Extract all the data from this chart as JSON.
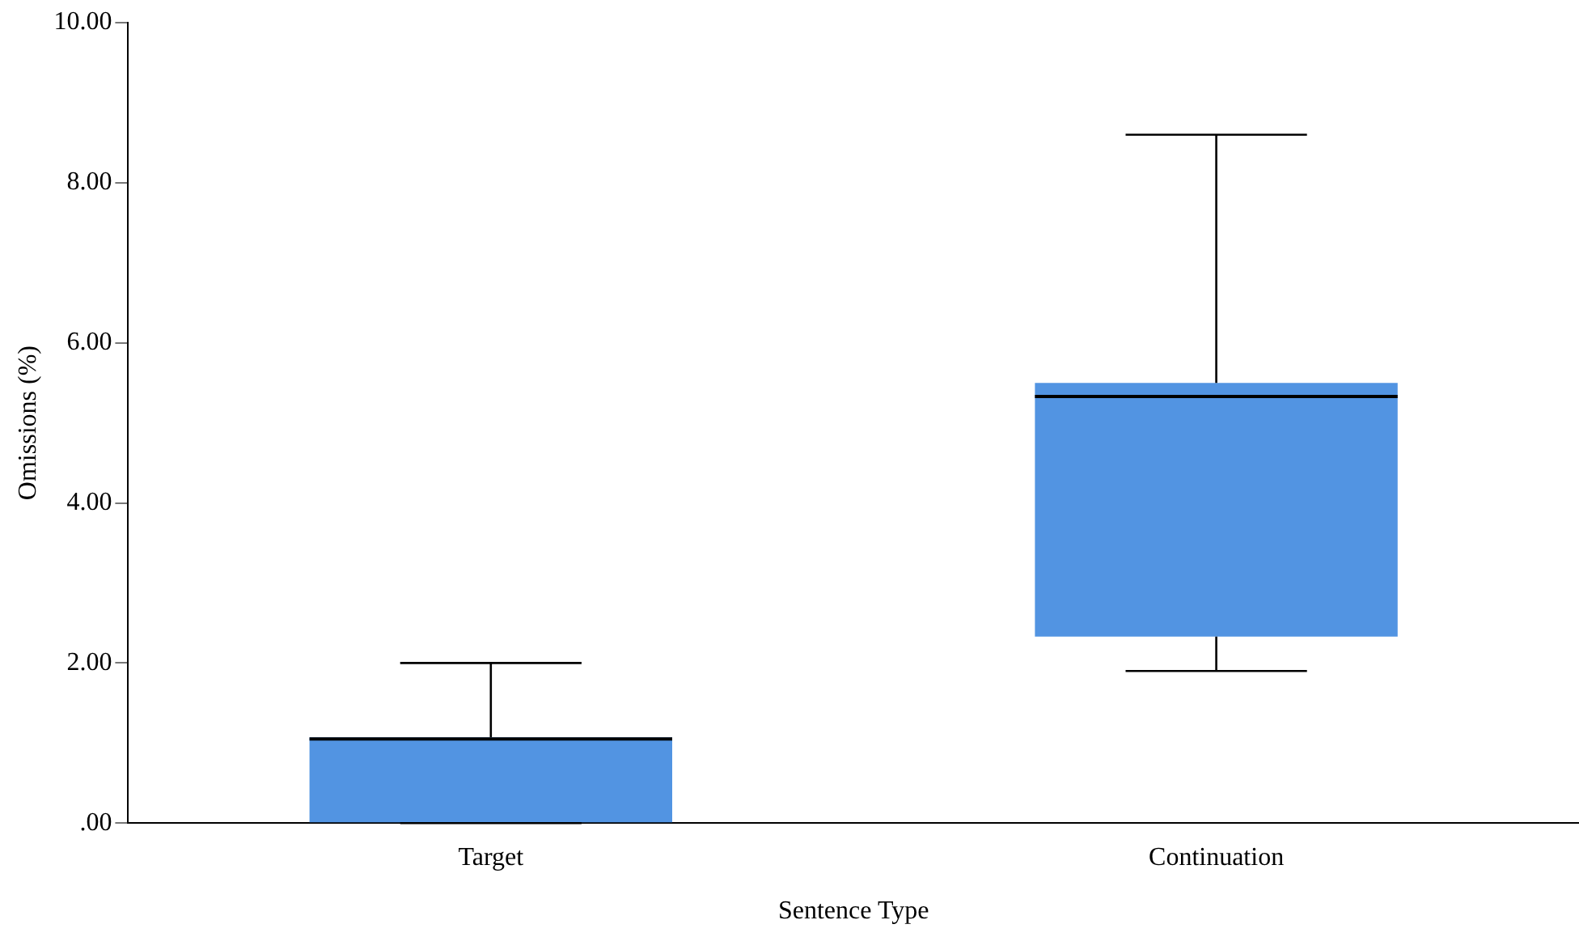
{
  "chart_data": {
    "type": "box",
    "xlabel": "Sentence Type",
    "ylabel": "Omissions (%)",
    "categories": [
      "Target",
      "Continuation"
    ],
    "color": "#5294e2",
    "boxes": [
      {
        "low": 0,
        "q1": 0,
        "median": 1.05,
        "q3": 1.07,
        "high": 2.0
      },
      {
        "low": 1.9,
        "q1": 2.33,
        "median": 5.33,
        "q3": 5.5,
        "high": 8.6
      }
    ],
    "ylim": [
      0,
      10
    ],
    "yticks": [
      {
        "value": 0,
        "label": ".00"
      },
      {
        "value": 2,
        "label": "2.00"
      },
      {
        "value": 4,
        "label": "4.00"
      },
      {
        "value": 6,
        "label": "6.00"
      },
      {
        "value": 8,
        "label": "8.00"
      },
      {
        "value": 10,
        "label": "10.00"
      }
    ],
    "grid": false
  }
}
